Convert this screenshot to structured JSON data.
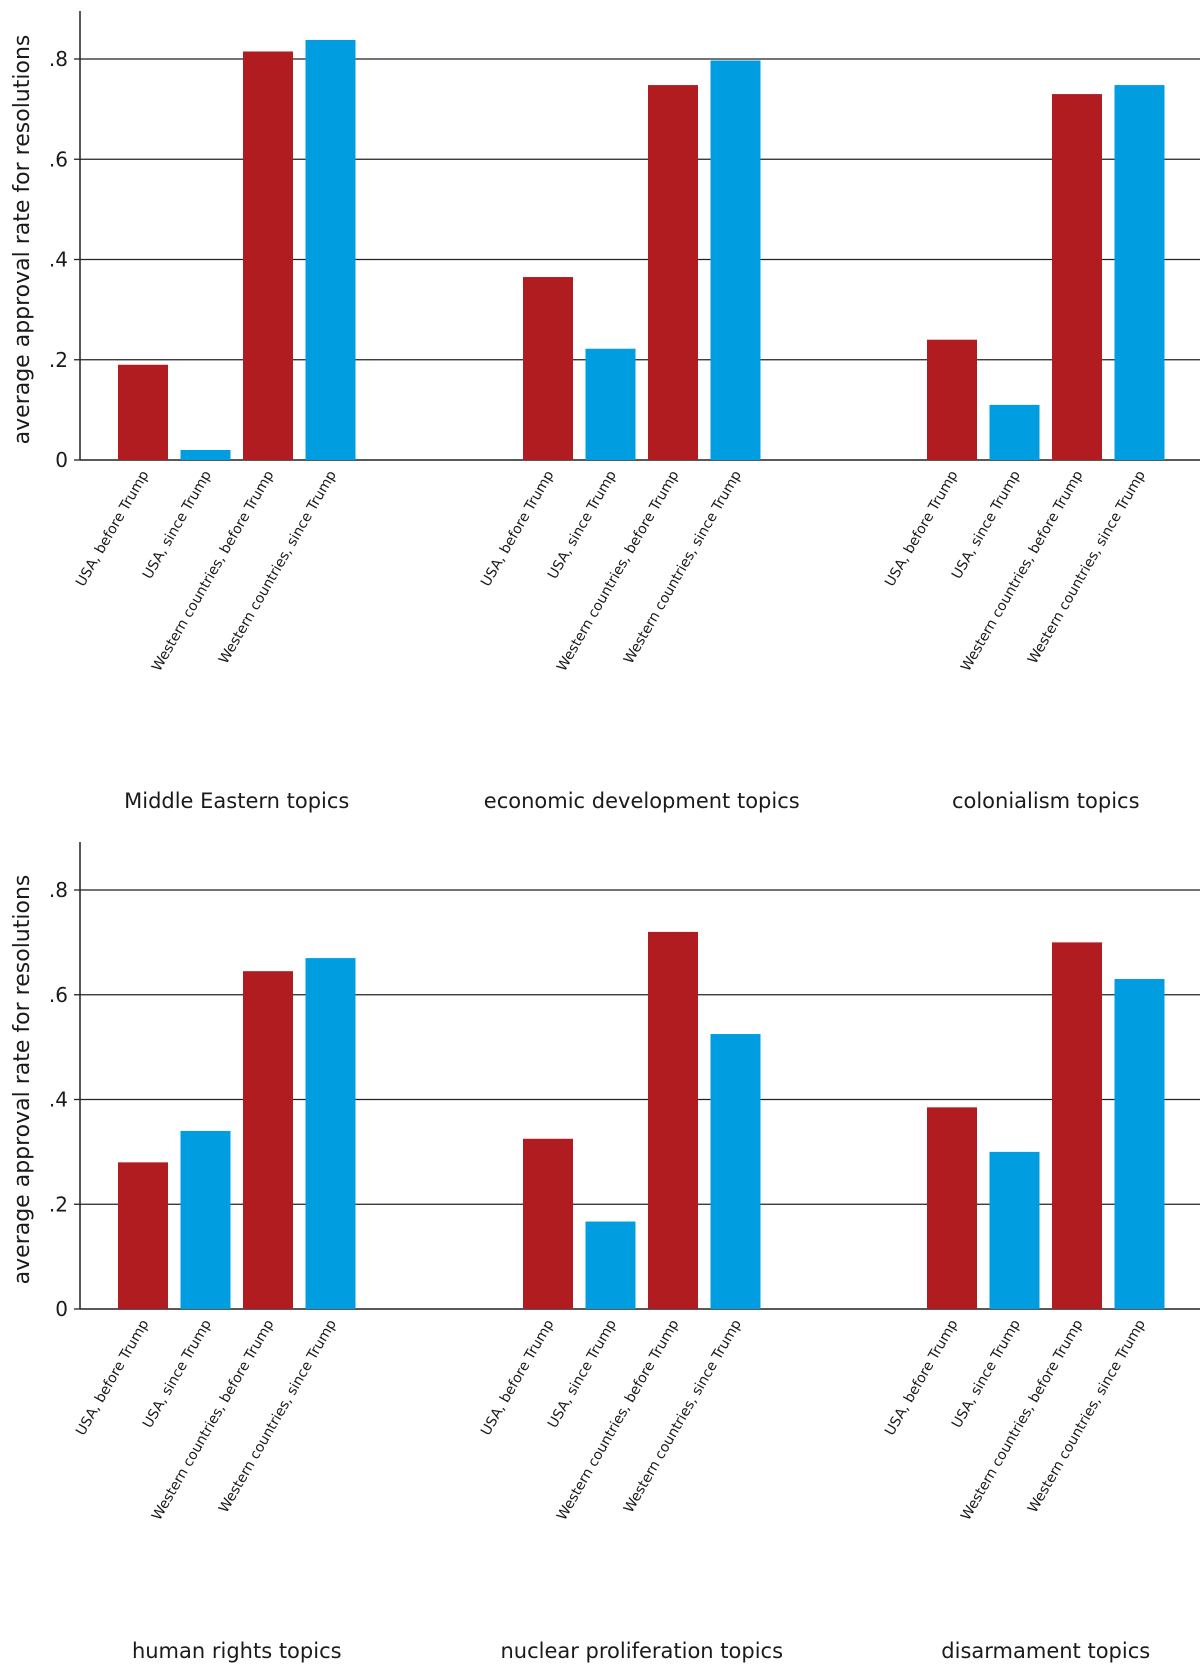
{
  "chart_data": {
    "type": "bar",
    "ylabel": "average approval rate for resolutions",
    "ylim": [
      0,
      0.85
    ],
    "yticks": [
      {
        "value": 0,
        "label": "0"
      },
      {
        "value": 0.2,
        "label": ".2"
      },
      {
        "value": 0.4,
        "label": ".4"
      },
      {
        "value": 0.6,
        "label": ".6"
      },
      {
        "value": 0.8,
        "label": ".8"
      }
    ],
    "grid": true,
    "categories": [
      "USA, before Trump",
      "USA, since Trump",
      "Western countries, before Trump",
      "Western countries, since Trump"
    ],
    "colors": [
      "#b01c1f",
      "#009de0",
      "#b01c1f",
      "#009de0"
    ],
    "panels": [
      {
        "groups": [
          {
            "label": "Middle Eastern topics",
            "values": [
              0.19,
              0.02,
              0.815,
              0.838
            ]
          },
          {
            "label": "economic development topics",
            "values": [
              0.365,
              0.222,
              0.748,
              0.797
            ]
          },
          {
            "label": "colonialism topics",
            "values": [
              0.24,
              0.11,
              0.73,
              0.748
            ]
          }
        ]
      },
      {
        "groups": [
          {
            "label": "human rights topics",
            "values": [
              0.28,
              0.34,
              0.645,
              0.67
            ]
          },
          {
            "label": "nuclear proliferation topics",
            "values": [
              0.325,
              0.167,
              0.72,
              0.525
            ]
          },
          {
            "label": "disarmament topics",
            "values": [
              0.385,
              0.3,
              0.7,
              0.63
            ]
          }
        ]
      }
    ]
  }
}
